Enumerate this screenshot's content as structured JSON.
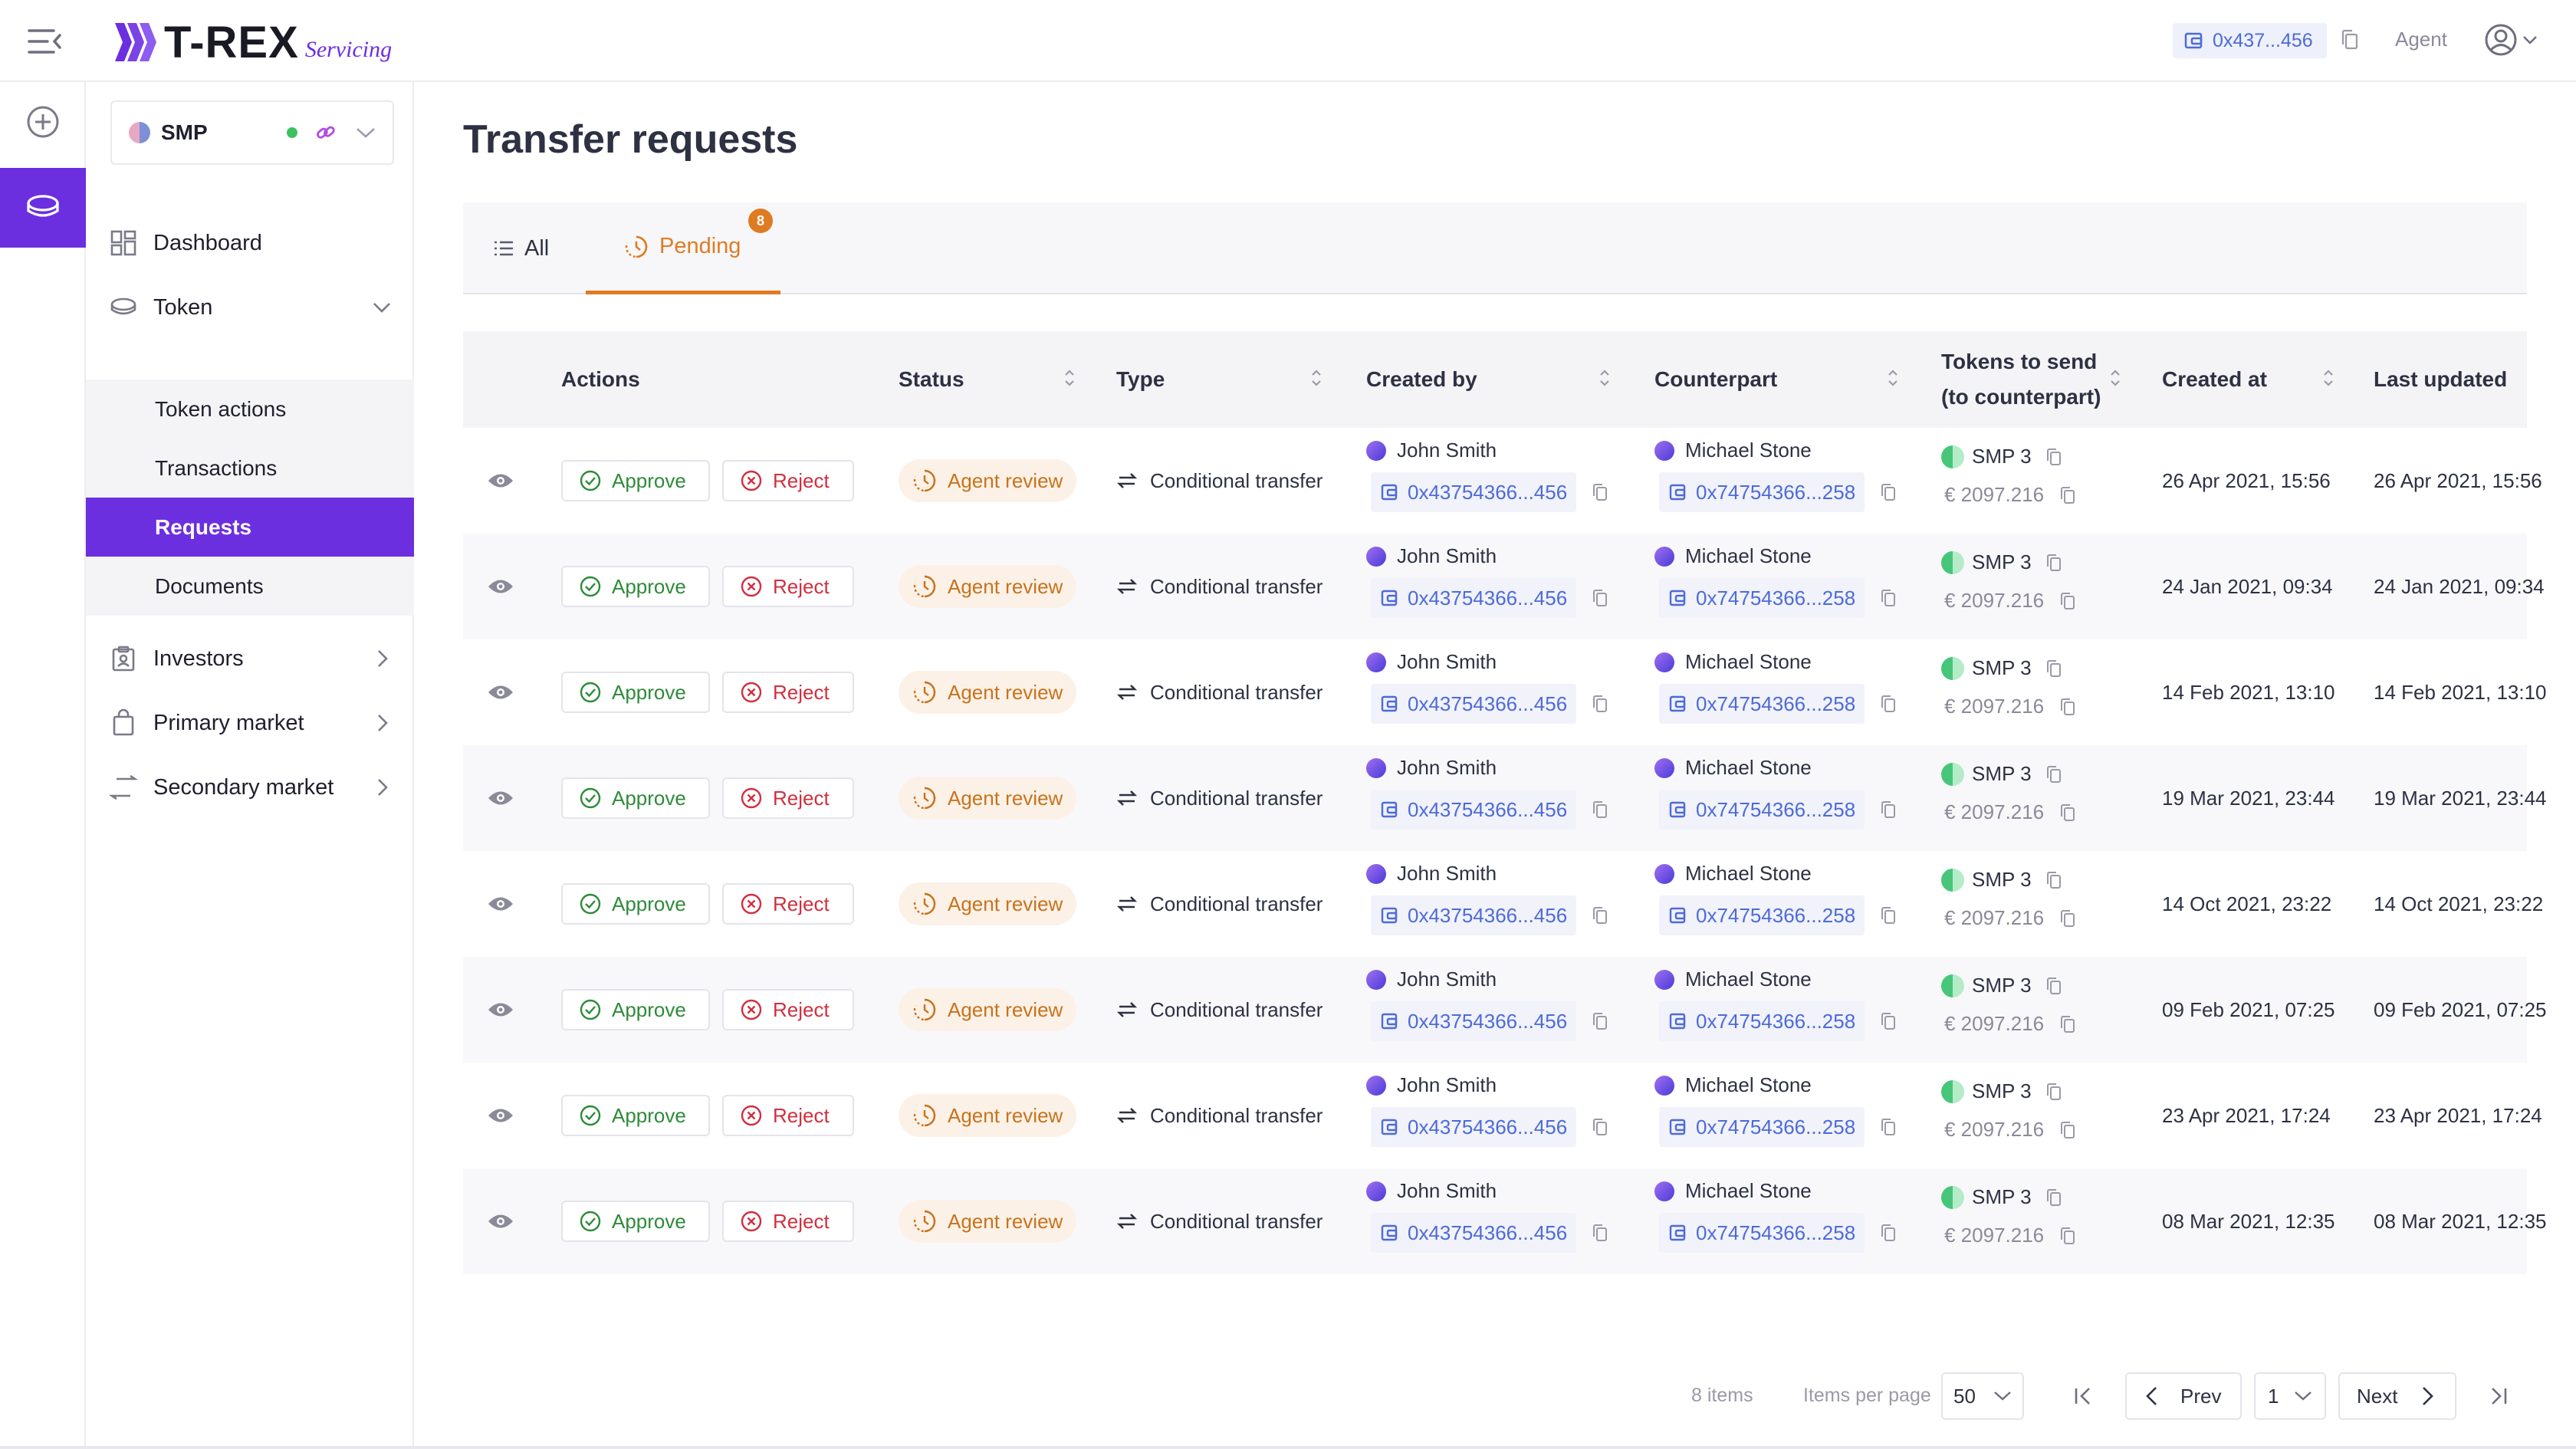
{
  "app": {
    "brand": "T-REX",
    "brand_sub": "Servicing",
    "wallet_address": "0x437...456",
    "role": "Agent"
  },
  "sidebar": {
    "token_ticker": "SMP",
    "items": [
      {
        "label": "Dashboard"
      },
      {
        "label": "Token"
      },
      {
        "label": "Investors"
      },
      {
        "label": "Primary market"
      },
      {
        "label": "Secondary market"
      }
    ],
    "token_sub": [
      {
        "label": "Token actions"
      },
      {
        "label": "Transactions"
      },
      {
        "label": "Requests"
      },
      {
        "label": "Documents"
      }
    ]
  },
  "page": {
    "title": "Transfer requests",
    "tabs": [
      {
        "label": "All"
      },
      {
        "label": "Pending",
        "badge": "8"
      }
    ]
  },
  "table": {
    "headers": {
      "actions": "Actions",
      "status": "Status",
      "type": "Type",
      "created_by": "Created by",
      "counterpart": "Counterpart",
      "tokens_line1": "Tokens to send",
      "tokens_line2": "(to counterpart)",
      "created_at": "Created at",
      "last_updated": "Last updated"
    },
    "labels": {
      "approve": "Approve",
      "reject": "Reject"
    },
    "rows": [
      {
        "status": "Agent review",
        "type": "Conditional transfer",
        "creator": "John Smith",
        "creator_addr": "0x43754366...456",
        "counterpart": "Michael Stone",
        "counterpart_addr": "0x74754366...258",
        "token": "SMP 3",
        "amount": "€ 2097.216",
        "created_at": "26 Apr 2021, 15:56",
        "updated": "26 Apr 2021, 15:56"
      },
      {
        "status": "Agent review",
        "type": "Conditional transfer",
        "creator": "John Smith",
        "creator_addr": "0x43754366...456",
        "counterpart": "Michael Stone",
        "counterpart_addr": "0x74754366...258",
        "token": "SMP 3",
        "amount": "€ 2097.216",
        "created_at": "24 Jan 2021, 09:34",
        "updated": "24 Jan 2021, 09:34"
      },
      {
        "status": "Agent review",
        "type": "Conditional transfer",
        "creator": "John Smith",
        "creator_addr": "0x43754366...456",
        "counterpart": "Michael Stone",
        "counterpart_addr": "0x74754366...258",
        "token": "SMP 3",
        "amount": "€ 2097.216",
        "created_at": "14 Feb 2021, 13:10",
        "updated": "14 Feb 2021, 13:10"
      },
      {
        "status": "Agent review",
        "type": "Conditional transfer",
        "creator": "John Smith",
        "creator_addr": "0x43754366...456",
        "counterpart": "Michael Stone",
        "counterpart_addr": "0x74754366...258",
        "token": "SMP 3",
        "amount": "€ 2097.216",
        "created_at": "19 Mar 2021, 23:44",
        "updated": "19 Mar 2021, 23:44"
      },
      {
        "status": "Agent review",
        "type": "Conditional transfer",
        "creator": "John Smith",
        "creator_addr": "0x43754366...456",
        "counterpart": "Michael Stone",
        "counterpart_addr": "0x74754366...258",
        "token": "SMP 3",
        "amount": "€ 2097.216",
        "created_at": "14 Oct 2021, 23:22",
        "updated": "14 Oct 2021, 23:22"
      },
      {
        "status": "Agent review",
        "type": "Conditional transfer",
        "creator": "John Smith",
        "creator_addr": "0x43754366...456",
        "counterpart": "Michael Stone",
        "counterpart_addr": "0x74754366...258",
        "token": "SMP 3",
        "amount": "€ 2097.216",
        "created_at": "09 Feb 2021, 07:25",
        "updated": "09 Feb 2021, 07:25"
      },
      {
        "status": "Agent review",
        "type": "Conditional transfer",
        "creator": "John Smith",
        "creator_addr": "0x43754366...456",
        "counterpart": "Michael Stone",
        "counterpart_addr": "0x74754366...258",
        "token": "SMP 3",
        "amount": "€ 2097.216",
        "created_at": "23 Apr 2021, 17:24",
        "updated": "23 Apr 2021, 17:24"
      },
      {
        "status": "Agent review",
        "type": "Conditional transfer",
        "creator": "John Smith",
        "creator_addr": "0x43754366...456",
        "counterpart": "Michael Stone",
        "counterpart_addr": "0x74754366...258",
        "token": "SMP 3",
        "amount": "€ 2097.216",
        "created_at": "08 Mar 2021, 12:35",
        "updated": "08 Mar 2021, 12:35"
      }
    ]
  },
  "pagination": {
    "items_count": "8 items",
    "per_page_label": "Items per page",
    "per_page_value": "50",
    "page_value": "1",
    "prev": "Prev",
    "next": "Next"
  },
  "colors": {
    "brand_purple": "#6b2fe0",
    "pending_orange": "#e07b22",
    "approve_green": "#2e8b3a",
    "reject_red": "#d12f3f",
    "link_blue": "#4d6bd8"
  },
  "icons": [
    "menu-collapse-icon",
    "trex-logo-icon",
    "wallet-icon",
    "copy-icon",
    "user-circle-icon",
    "plus-circle-icon",
    "coins-icon",
    "dashboard-icon",
    "token-icon",
    "investors-icon",
    "primary-market-icon",
    "secondary-market-icon",
    "list-icon",
    "clock-icon",
    "eye-icon",
    "check-circle-icon",
    "x-circle-icon",
    "transfer-arrows-icon",
    "sort-icon",
    "chevron-icon"
  ]
}
